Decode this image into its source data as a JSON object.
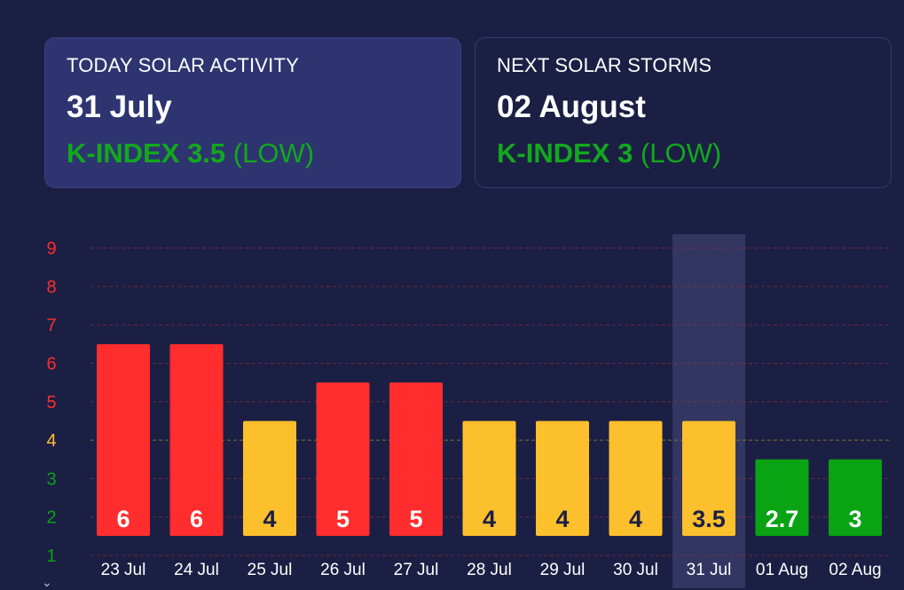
{
  "cards": {
    "today": {
      "heading": "TODAY SOLAR ACTIVITY",
      "date": "31 July",
      "kindex_label": "K-INDEX 3.5",
      "level": "(LOW)"
    },
    "next": {
      "heading": "NEXT SOLAR STORMS",
      "date": "02 August",
      "kindex_label": "K-INDEX 3",
      "level": "(LOW)"
    }
  },
  "colors": {
    "background": "#1c1f44",
    "high": "#ff2d2d",
    "medium": "#fcc02c",
    "low": "#0aa314",
    "gridline": "#a8323a",
    "threshold_line": "#8a7a2e",
    "highlight": "#323661",
    "today_card": "#2e3470"
  },
  "chart_data": {
    "type": "bar",
    "categories": [
      "23 Jul",
      "24 Jul",
      "25 Jul",
      "26 Jul",
      "27 Jul",
      "28 Jul",
      "29 Jul",
      "30 Jul",
      "31 Jul",
      "01 Aug",
      "02 Aug"
    ],
    "values": [
      6,
      6,
      4,
      5,
      5,
      4,
      4,
      4,
      3.5,
      2.7,
      3
    ],
    "bar_heights": [
      6.5,
      6.5,
      4.5,
      5.5,
      5.5,
      4.5,
      4.5,
      4.5,
      4.5,
      3.5,
      3.5
    ],
    "value_labels": [
      "6",
      "6",
      "4",
      "5",
      "5",
      "4",
      "4",
      "4",
      "3.5",
      "2.7",
      "3"
    ],
    "bar_levels": [
      "high",
      "high",
      "medium",
      "high",
      "high",
      "medium",
      "medium",
      "medium",
      "medium",
      "low",
      "low"
    ],
    "highlighted_index": 8,
    "y_ticks": [
      1,
      2,
      3,
      4,
      5,
      6,
      7,
      8,
      9
    ],
    "y_tick_levels": [
      "low",
      "low",
      "low",
      "medium",
      "high",
      "high",
      "high",
      "high",
      "high"
    ],
    "ylim": [
      1,
      9
    ],
    "title": "",
    "xlabel": "",
    "ylabel": "",
    "grid": true
  }
}
